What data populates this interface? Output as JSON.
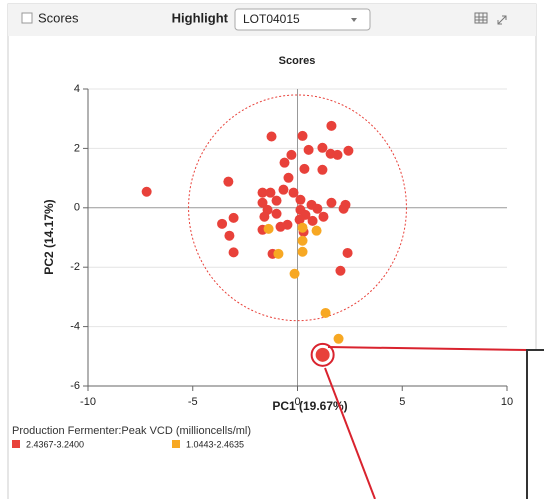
{
  "toolbar": {
    "checkbox_label": "Scores",
    "highlight_label": "Highlight",
    "selected_lot": "LOT04015"
  },
  "chart_data": {
    "type": "scatter",
    "title": "Scores",
    "xlabel": "PC1 (19.67%)",
    "ylabel": "PC2 (14.17%)",
    "xlim": [
      -10,
      10
    ],
    "xticks": [
      -10,
      -5,
      0,
      5,
      10
    ],
    "ylim": [
      -6,
      4
    ],
    "yticks": [
      -6,
      -4,
      -2,
      0,
      2,
      4
    ],
    "grid": true,
    "legend_title": "Production Fermenter:Peak VCD (millioncells/ml)",
    "legend_position": "bottom-left",
    "ellipse": {
      "rx": 5.2,
      "ry": 3.8
    },
    "series": [
      {
        "name": "2.4367-3.2400",
        "color": "#e8413a",
        "x": [
          -7.2,
          -3.3,
          -3.6,
          -3.05,
          -3.25,
          -3.05,
          -1.24,
          0.24,
          1.62,
          -0.29,
          0.53,
          1.19,
          1.58,
          1.91,
          2.43,
          0.33,
          -0.62,
          -0.43,
          1.19,
          -0.67,
          -0.19,
          -1.67,
          -1.29,
          -1.67,
          -1.43,
          -1.0,
          -1.0,
          -1.58,
          0.14,
          0.14,
          0.67,
          0.95,
          0.38,
          0.1,
          0.72,
          1.24,
          2.29,
          2.2,
          -0.81,
          -1.67,
          -1.19,
          2.39,
          2.05,
          1.62,
          -0.48,
          0.29
        ],
        "y": [
          0.54,
          0.88,
          -0.54,
          -0.34,
          -0.94,
          -1.5,
          2.4,
          2.42,
          2.76,
          1.78,
          1.95,
          2.02,
          1.82,
          1.78,
          1.92,
          1.31,
          1.52,
          1.01,
          1.28,
          0.61,
          0.51,
          0.51,
          0.51,
          0.17,
          -0.07,
          0.24,
          -0.2,
          -0.3,
          0.27,
          -0.07,
          0.1,
          -0.03,
          -0.24,
          -0.4,
          -0.44,
          -0.3,
          0.1,
          -0.03,
          -0.64,
          -0.74,
          -1.55,
          -1.52,
          -2.12,
          0.17,
          -0.57,
          -0.81
        ]
      },
      {
        "name": "1.0443-2.4635",
        "color": "#f7a823",
        "x": [
          -1.38,
          -0.91,
          0.24,
          0.24,
          0.91,
          0.24,
          -0.14,
          1.34,
          1.96
        ],
        "y": [
          -0.71,
          -1.55,
          -0.67,
          -1.11,
          -0.77,
          -1.48,
          -2.22,
          -3.54,
          -4.41
        ]
      }
    ],
    "highlight": {
      "x": 1.2,
      "y": -4.95,
      "color": "#e8413a"
    }
  }
}
